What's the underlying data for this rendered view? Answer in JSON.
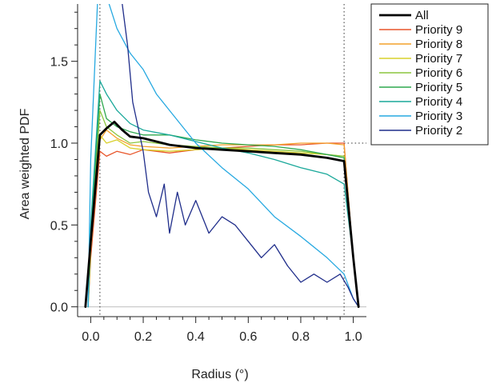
{
  "chart_data": {
    "type": "line",
    "xlabel": "Radius (°)",
    "ylabel": "Area weighted PDF",
    "xlim": [
      -0.05,
      1.05
    ],
    "ylim": [
      -0.06,
      1.85
    ],
    "xticks": [
      0.0,
      0.2,
      0.4,
      0.6,
      0.8,
      1.0
    ],
    "xtick_labels": [
      "0.0",
      "0.2",
      "0.4",
      "0.6",
      "0.8",
      "1.0"
    ],
    "yticks": [
      0.0,
      0.5,
      1.0,
      1.5
    ],
    "ytick_labels": [
      "0.0",
      "0.5",
      "1.0",
      "1.5"
    ],
    "reference_lines": {
      "vertical": [
        0.035,
        0.965
      ],
      "horizontal_dotted": 1.0,
      "horizontal_solid": 0.0
    },
    "grid": false,
    "legend_position": "outside-right",
    "series": [
      {
        "name": "All",
        "color": "#000000",
        "width": 2.8,
        "x": [
          -0.02,
          0.0,
          0.035,
          0.06,
          0.09,
          0.12,
          0.15,
          0.2,
          0.3,
          0.4,
          0.5,
          0.6,
          0.7,
          0.8,
          0.9,
          0.965,
          1.0,
          1.02
        ],
        "y": [
          0.0,
          0.4,
          1.05,
          1.09,
          1.13,
          1.08,
          1.04,
          1.03,
          0.99,
          0.97,
          0.96,
          0.95,
          0.94,
          0.93,
          0.91,
          0.89,
          0.3,
          0.0
        ]
      },
      {
        "name": "Priority 9",
        "color": "#e8552a",
        "width": 1.3,
        "x": [
          -0.01,
          0.0,
          0.035,
          0.06,
          0.1,
          0.15,
          0.2,
          0.3,
          0.4,
          0.5,
          0.6,
          0.7,
          0.8,
          0.9,
          0.965,
          1.0,
          1.02
        ],
        "y": [
          0.0,
          0.3,
          0.95,
          0.92,
          0.95,
          0.93,
          0.96,
          0.94,
          0.96,
          0.97,
          0.98,
          0.99,
          0.99,
          1.0,
          1.0,
          0.3,
          0.0
        ]
      },
      {
        "name": "Priority 8",
        "color": "#f4a02a",
        "width": 1.3,
        "x": [
          -0.01,
          0.0,
          0.035,
          0.06,
          0.1,
          0.15,
          0.2,
          0.3,
          0.4,
          0.5,
          0.6,
          0.7,
          0.8,
          0.9,
          0.965,
          1.0,
          1.02
        ],
        "y": [
          0.0,
          0.35,
          1.02,
          1.08,
          1.03,
          0.99,
          0.98,
          0.97,
          0.98,
          0.99,
          0.99,
          0.99,
          1.0,
          1.0,
          0.99,
          0.3,
          0.0
        ]
      },
      {
        "name": "Priority 7",
        "color": "#d8d02c",
        "width": 1.3,
        "x": [
          -0.01,
          0.0,
          0.035,
          0.06,
          0.1,
          0.15,
          0.2,
          0.3,
          0.4,
          0.5,
          0.6,
          0.7,
          0.8,
          0.9,
          0.965,
          1.0,
          1.02
        ],
        "y": [
          0.0,
          0.35,
          1.05,
          1.0,
          1.02,
          0.97,
          0.96,
          0.95,
          0.96,
          0.97,
          0.96,
          0.95,
          0.94,
          0.93,
          0.92,
          0.3,
          0.0
        ]
      },
      {
        "name": "Priority 6",
        "color": "#8cc63e",
        "width": 1.3,
        "x": [
          -0.01,
          0.0,
          0.035,
          0.06,
          0.1,
          0.15,
          0.2,
          0.3,
          0.4,
          0.5,
          0.6,
          0.7,
          0.8,
          0.9,
          0.965,
          1.0,
          1.02
        ],
        "y": [
          0.0,
          0.4,
          1.2,
          1.1,
          1.05,
          1.0,
          1.01,
          0.99,
          0.98,
          0.97,
          0.97,
          0.96,
          0.95,
          0.93,
          0.92,
          0.3,
          0.0
        ]
      },
      {
        "name": "Priority 5",
        "color": "#2fa84f",
        "width": 1.3,
        "x": [
          -0.01,
          0.0,
          0.035,
          0.06,
          0.1,
          0.15,
          0.2,
          0.3,
          0.4,
          0.5,
          0.6,
          0.7,
          0.8,
          0.9,
          0.965,
          1.0,
          1.02
        ],
        "y": [
          0.0,
          0.45,
          1.3,
          1.15,
          1.1,
          1.07,
          1.05,
          1.05,
          1.02,
          1.0,
          0.99,
          0.98,
          0.96,
          0.93,
          0.91,
          0.3,
          0.0
        ]
      },
      {
        "name": "Priority 4",
        "color": "#1aa89a",
        "width": 1.3,
        "x": [
          -0.01,
          0.0,
          0.035,
          0.06,
          0.1,
          0.15,
          0.2,
          0.3,
          0.4,
          0.5,
          0.6,
          0.7,
          0.8,
          0.9,
          0.965,
          1.0,
          1.02
        ],
        "y": [
          0.0,
          0.5,
          1.38,
          1.3,
          1.2,
          1.12,
          1.08,
          1.05,
          1.01,
          0.97,
          0.94,
          0.9,
          0.85,
          0.81,
          0.75,
          0.3,
          0.0
        ]
      },
      {
        "name": "Priority 3",
        "color": "#27a9e1",
        "width": 1.3,
        "x": [
          -0.01,
          0.0,
          0.035,
          0.06,
          0.1,
          0.15,
          0.2,
          0.25,
          0.3,
          0.4,
          0.5,
          0.6,
          0.7,
          0.8,
          0.9,
          0.965,
          1.0,
          1.02
        ],
        "y": [
          0.0,
          0.9,
          2.2,
          1.9,
          1.7,
          1.55,
          1.45,
          1.3,
          1.2,
          1.0,
          0.85,
          0.72,
          0.55,
          0.43,
          0.3,
          0.2,
          0.05,
          0.0
        ]
      },
      {
        "name": "Priority 2",
        "color": "#1f2d8a",
        "width": 1.3,
        "x": [
          0.12,
          0.14,
          0.16,
          0.18,
          0.2,
          0.22,
          0.25,
          0.28,
          0.3,
          0.33,
          0.36,
          0.4,
          0.45,
          0.5,
          0.55,
          0.6,
          0.65,
          0.7,
          0.75,
          0.8,
          0.85,
          0.9,
          0.95,
          0.98,
          1.0,
          1.02
        ],
        "y": [
          1.85,
          1.6,
          1.25,
          1.1,
          0.95,
          0.7,
          0.55,
          0.75,
          0.45,
          0.7,
          0.5,
          0.65,
          0.45,
          0.55,
          0.5,
          0.4,
          0.3,
          0.38,
          0.25,
          0.15,
          0.2,
          0.15,
          0.2,
          0.12,
          0.05,
          0.0
        ]
      }
    ]
  }
}
